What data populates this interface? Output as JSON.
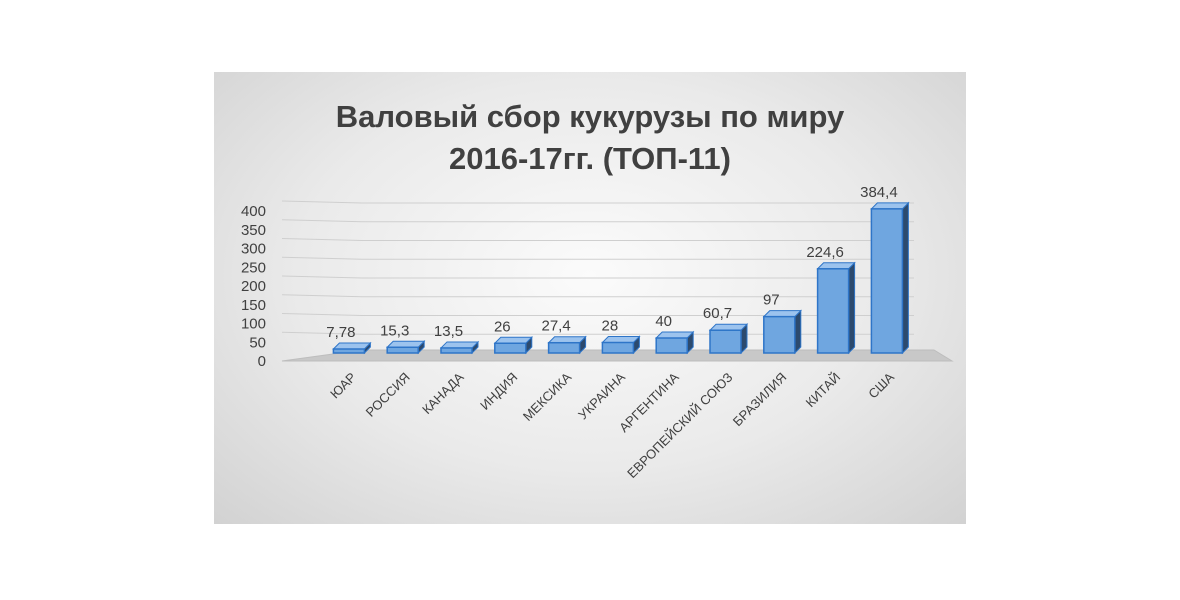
{
  "chart_data": {
    "type": "bar",
    "title": "Валовый сбор кукурузы по миру\n2016-17гг. (ТОП-11)",
    "categories": [
      "ЮАР",
      "РОССИЯ",
      "КАНАДА",
      "ИНДИЯ",
      "МЕКСИКА",
      "УКРАИНА",
      "АРГЕНТИНА",
      "ЕВРОПЕЙСКИЙ СОЮЗ",
      "БРАЗИЛИЯ",
      "КИТАЙ",
      "США"
    ],
    "values": [
      7.78,
      15.3,
      13.5,
      26,
      27.4,
      28,
      40,
      60.7,
      97,
      224.6,
      384.4
    ],
    "value_labels": [
      "7,78",
      "15,3",
      "13,5",
      "26",
      "27,4",
      "28",
      "40",
      "60,7",
      "97",
      "224,6",
      "384,4"
    ],
    "ylim": [
      0,
      400
    ],
    "yticks": [
      "0",
      "50",
      "100",
      "150",
      "200",
      "250",
      "300",
      "350",
      "400"
    ],
    "grid": true,
    "legend": "none",
    "colors": {
      "bar_front": "#6fa6e0",
      "bar_top": "#9cc3ee",
      "bar_side": "#2c4a6e",
      "bar_edge": "#2e75c8",
      "floor": "#c8c8c8",
      "text": "#404040",
      "grid": "#cfcfcf"
    }
  }
}
